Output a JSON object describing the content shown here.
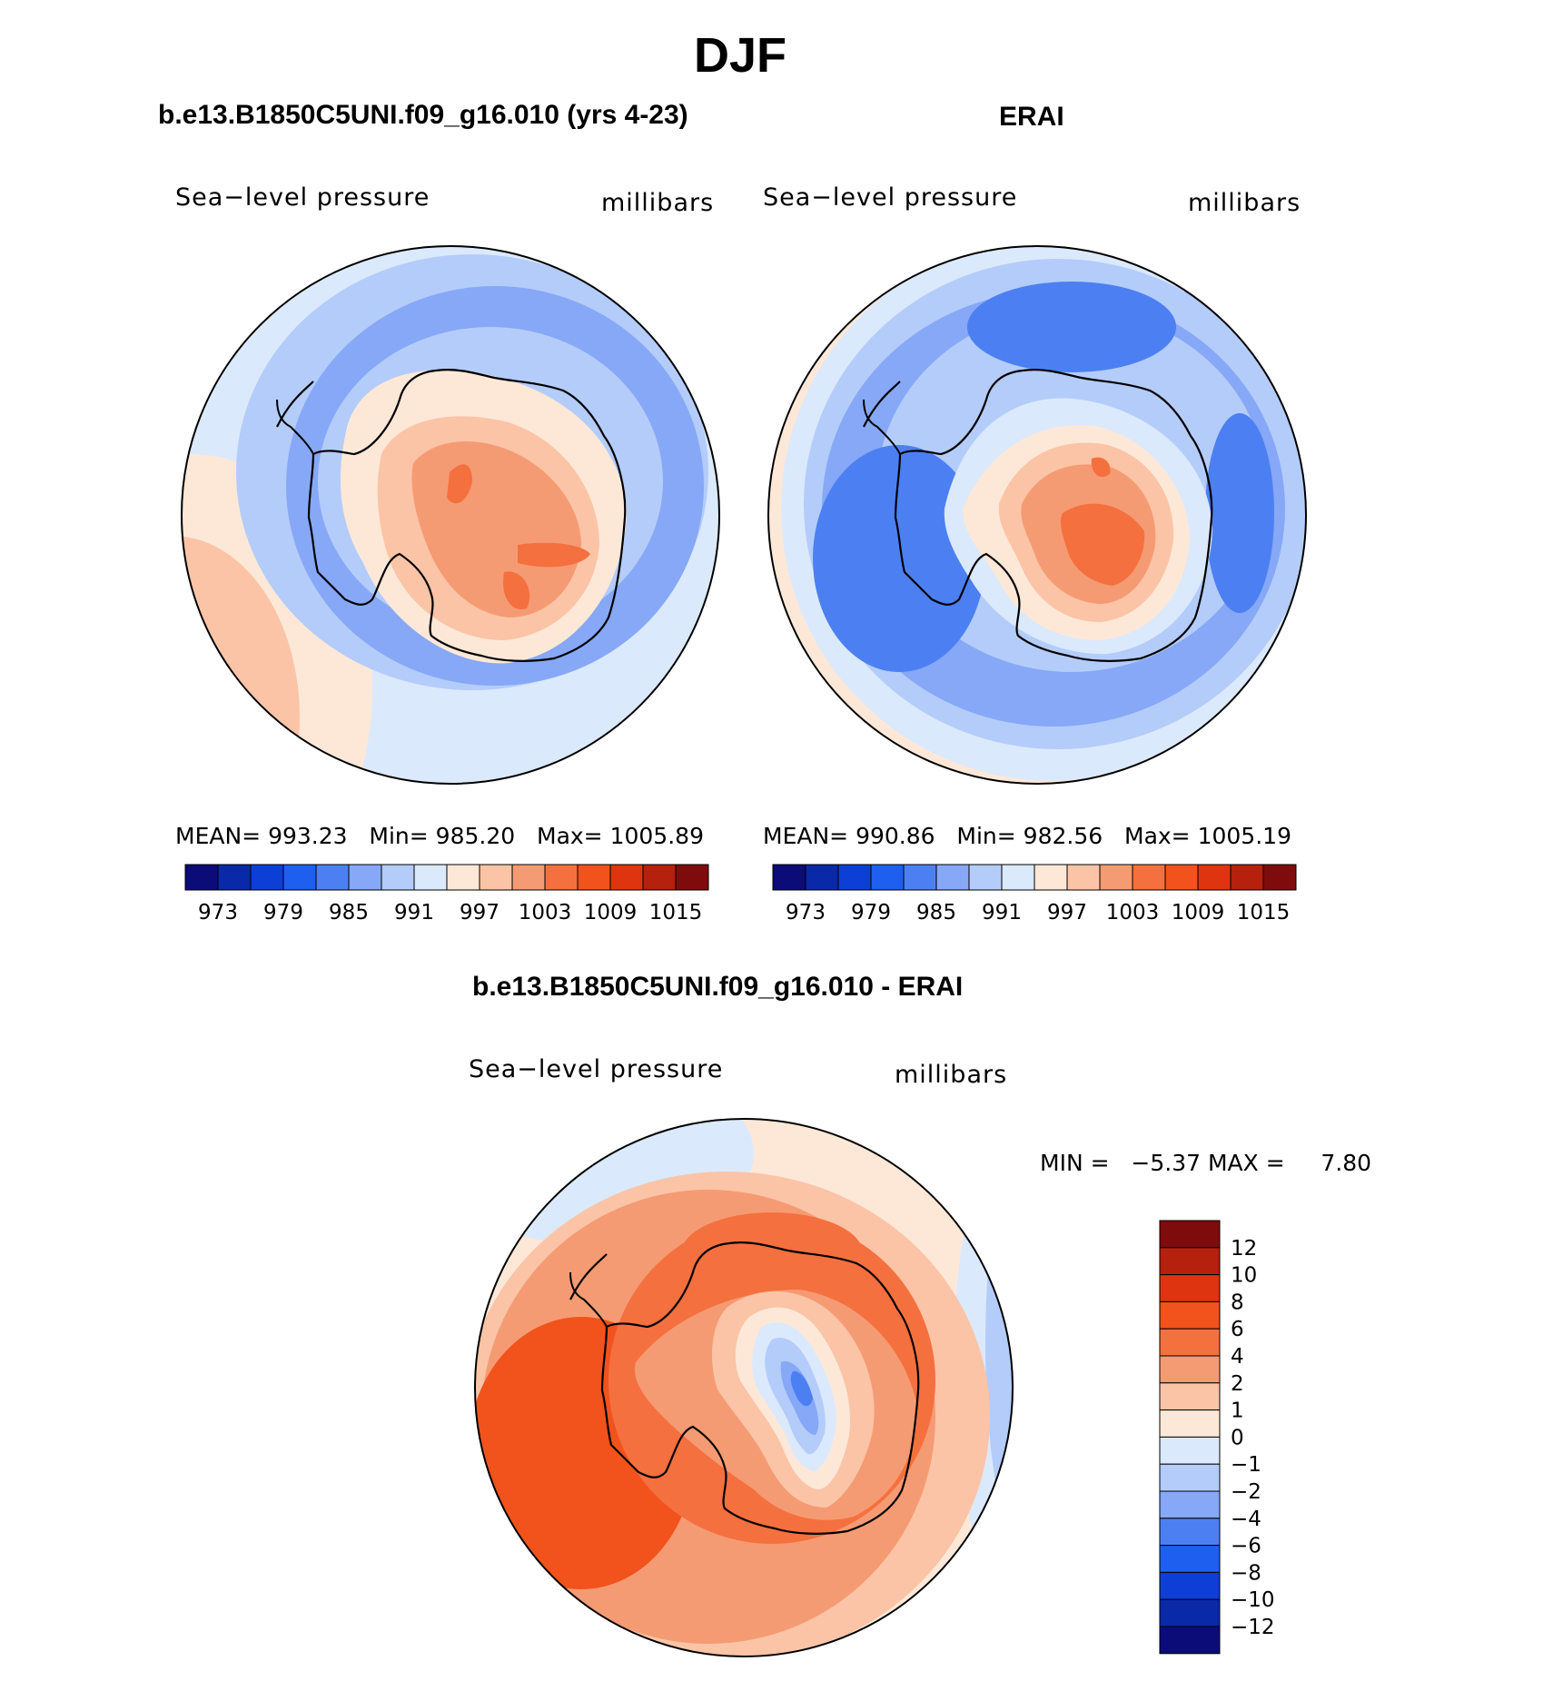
{
  "figure": {
    "season": "DJF"
  },
  "panels": [
    {
      "title": "b.e13.B1850C5UNI.f09_g16.010 (yrs 4-23)",
      "variable": "Sea−level pressure",
      "units": "millibars",
      "stats": {
        "mean_label": "MEAN=",
        "mean": "993.23",
        "min_label": "Min=",
        "min": "985.20",
        "max_label": "Max=",
        "max": "1005.89"
      }
    },
    {
      "title": "ERAI",
      "variable": "Sea−level pressure",
      "units": "millibars",
      "stats": {
        "mean_label": "MEAN=",
        "mean": "990.86",
        "min_label": "Min=",
        "min": "982.56",
        "max_label": "Max=",
        "max": "1005.19"
      }
    },
    {
      "title": "b.e13.B1850C5UNI.f09_g16.010 - ERAI",
      "variable": "Sea−level pressure",
      "units": "millibars",
      "stats": {
        "min_label": "MIN =",
        "min": "−5.37",
        "max_label": "MAX =",
        "max": "7.80"
      }
    }
  ],
  "colorbar_abs": {
    "ticks": [
      "973",
      "979",
      "985",
      "991",
      "997",
      "1003",
      "1009",
      "1015"
    ],
    "colors": [
      "#0b0c78",
      "#0a29a8",
      "#0d3fd6",
      "#1f5ff0",
      "#4c80f2",
      "#86a8f6",
      "#b4ccfa",
      "#dbe9fc",
      "#fde8d8",
      "#fbc4a6",
      "#f59b73",
      "#f5703f",
      "#f2521c",
      "#de3510",
      "#b5210c",
      "#7f0c0c"
    ]
  },
  "colorbar_diff": {
    "labels": [
      "12",
      "10",
      "8",
      "6",
      "4",
      "2",
      "1",
      "0",
      "−1",
      "−2",
      "−4",
      "−6",
      "−8",
      "−10",
      "−12"
    ],
    "colors": [
      "#7f0c0c",
      "#b5210c",
      "#de3510",
      "#f2521c",
      "#f5703f",
      "#f59b73",
      "#fbc4a6",
      "#fde8d8",
      "#dbe9fc",
      "#b4ccfa",
      "#86a8f6",
      "#4c80f2",
      "#1f5ff0",
      "#0d3fd6",
      "#0a29a8",
      "#0b0c78"
    ]
  },
  "map_colors": {
    "c_deep_blue": "#4c80f2",
    "c_mid_blue": "#86a8f6",
    "c_light_blue": "#b4ccfa",
    "c_pale_blue": "#dbe9fc",
    "c_cream": "#fde8d8",
    "c_peach": "#fbc4a6",
    "c_salmon": "#f59b73",
    "c_orange": "#f5703f",
    "c_red_orange": "#f2521c"
  }
}
